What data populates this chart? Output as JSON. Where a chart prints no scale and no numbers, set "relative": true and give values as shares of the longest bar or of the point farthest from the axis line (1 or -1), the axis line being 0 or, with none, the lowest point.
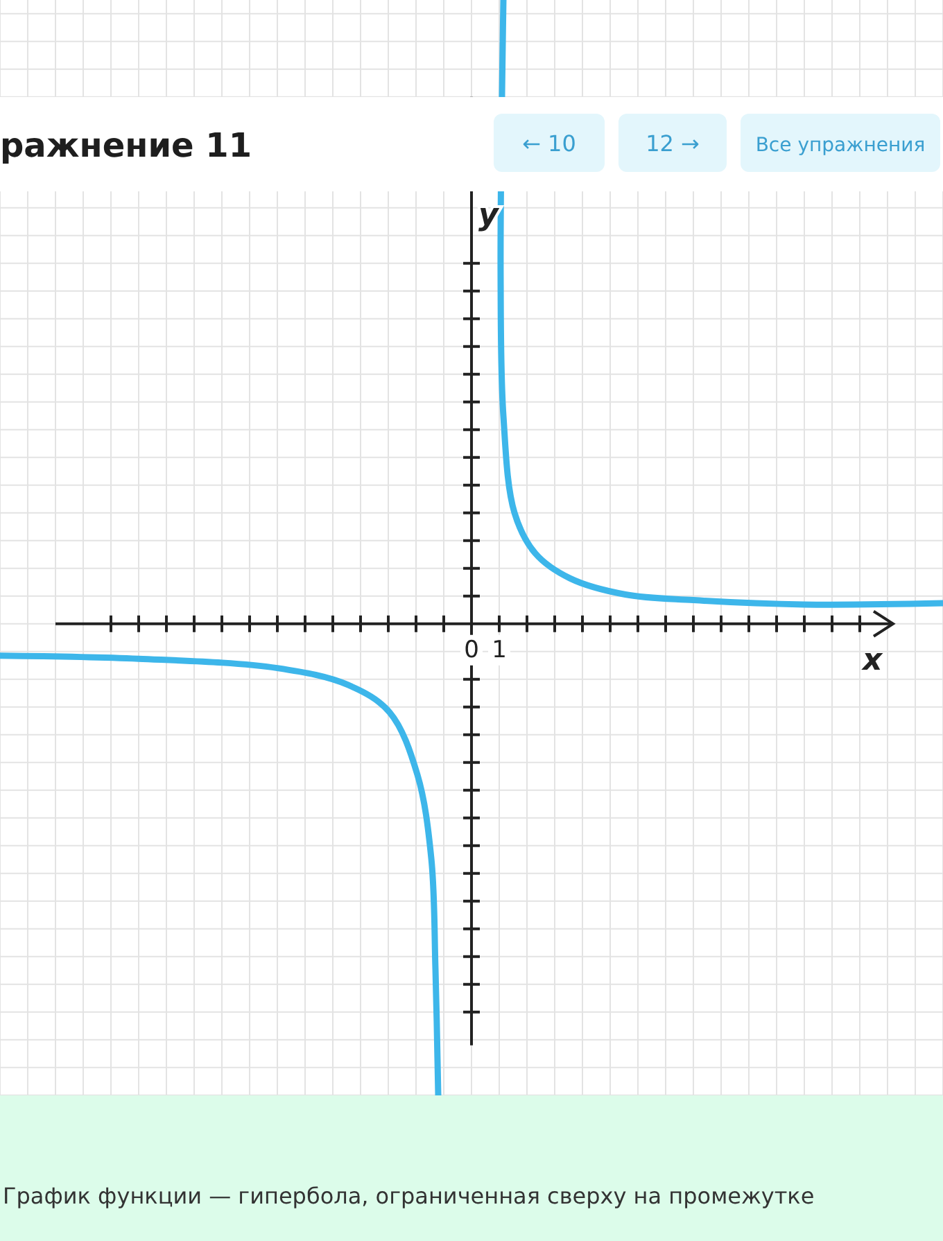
{
  "chart_data": {
    "type": "line",
    "title": "ражнение 11",
    "xlabel": "x",
    "ylabel": "y",
    "annotations": [
      "← 10",
      "12 →",
      "Все упражнения",
      "График функции — гипербола, ограниченная сверху на промежутке"
    ],
    "xlim": [
      -17,
      17
    ],
    "relative": true,
    "xticks": [
      {
        "value": -13,
        "label": null
      },
      {
        "value": -12,
        "label": null
      },
      {
        "value": -11,
        "label": null
      },
      {
        "value": -10,
        "label": null
      },
      {
        "value": -9,
        "label": null
      },
      {
        "value": -8,
        "label": null
      },
      {
        "value": -7,
        "label": null
      },
      {
        "value": -6,
        "label": null
      },
      {
        "value": -5,
        "label": null
      },
      {
        "value": -4,
        "label": null
      },
      {
        "value": -3,
        "label": null
      },
      {
        "value": -2,
        "label": null
      },
      {
        "value": -1,
        "label": null
      },
      0,
      1,
      {
        "value": 2,
        "label": null
      },
      {
        "value": 3,
        "label": null
      },
      {
        "value": 4,
        "label": null
      },
      {
        "value": 5,
        "label": null
      },
      {
        "value": 6,
        "label": null
      },
      {
        "value": 7,
        "label": null
      },
      {
        "value": 8,
        "label": null
      },
      {
        "value": 9,
        "label": null
      },
      {
        "value": 10,
        "label": null
      },
      {
        "value": 11,
        "label": null
      },
      {
        "value": 12,
        "label": null
      },
      {
        "value": 13,
        "label": null
      },
      {
        "value": 14,
        "label": null
      }
    ],
    "grid": true,
    "marker": "none",
    "line_style": "solid",
    "series": [
      {
        "color": "#3db6ea",
        "x": [
          1.15,
          1.05,
          1.15,
          1.55,
          2.3,
          3.55,
          5.55,
          8,
          12,
          17
        ],
        "values": [
          1,
          0.556,
          0.333,
          0.178,
          0.113,
          0.073,
          0.047,
          0.038,
          0.031,
          0.033
        ]
      },
      {
        "color": "#3db6ea",
        "x": [
          -17,
          -12,
          -7,
          -4.45,
          -2.95,
          -1.95,
          -1.45,
          -1.3,
          -1.2
        ],
        "values": [
          -0.051,
          -0.056,
          -0.071,
          -0.098,
          -0.142,
          -0.242,
          -0.376,
          -0.553,
          -0.756
        ]
      }
    ]
  }
}
